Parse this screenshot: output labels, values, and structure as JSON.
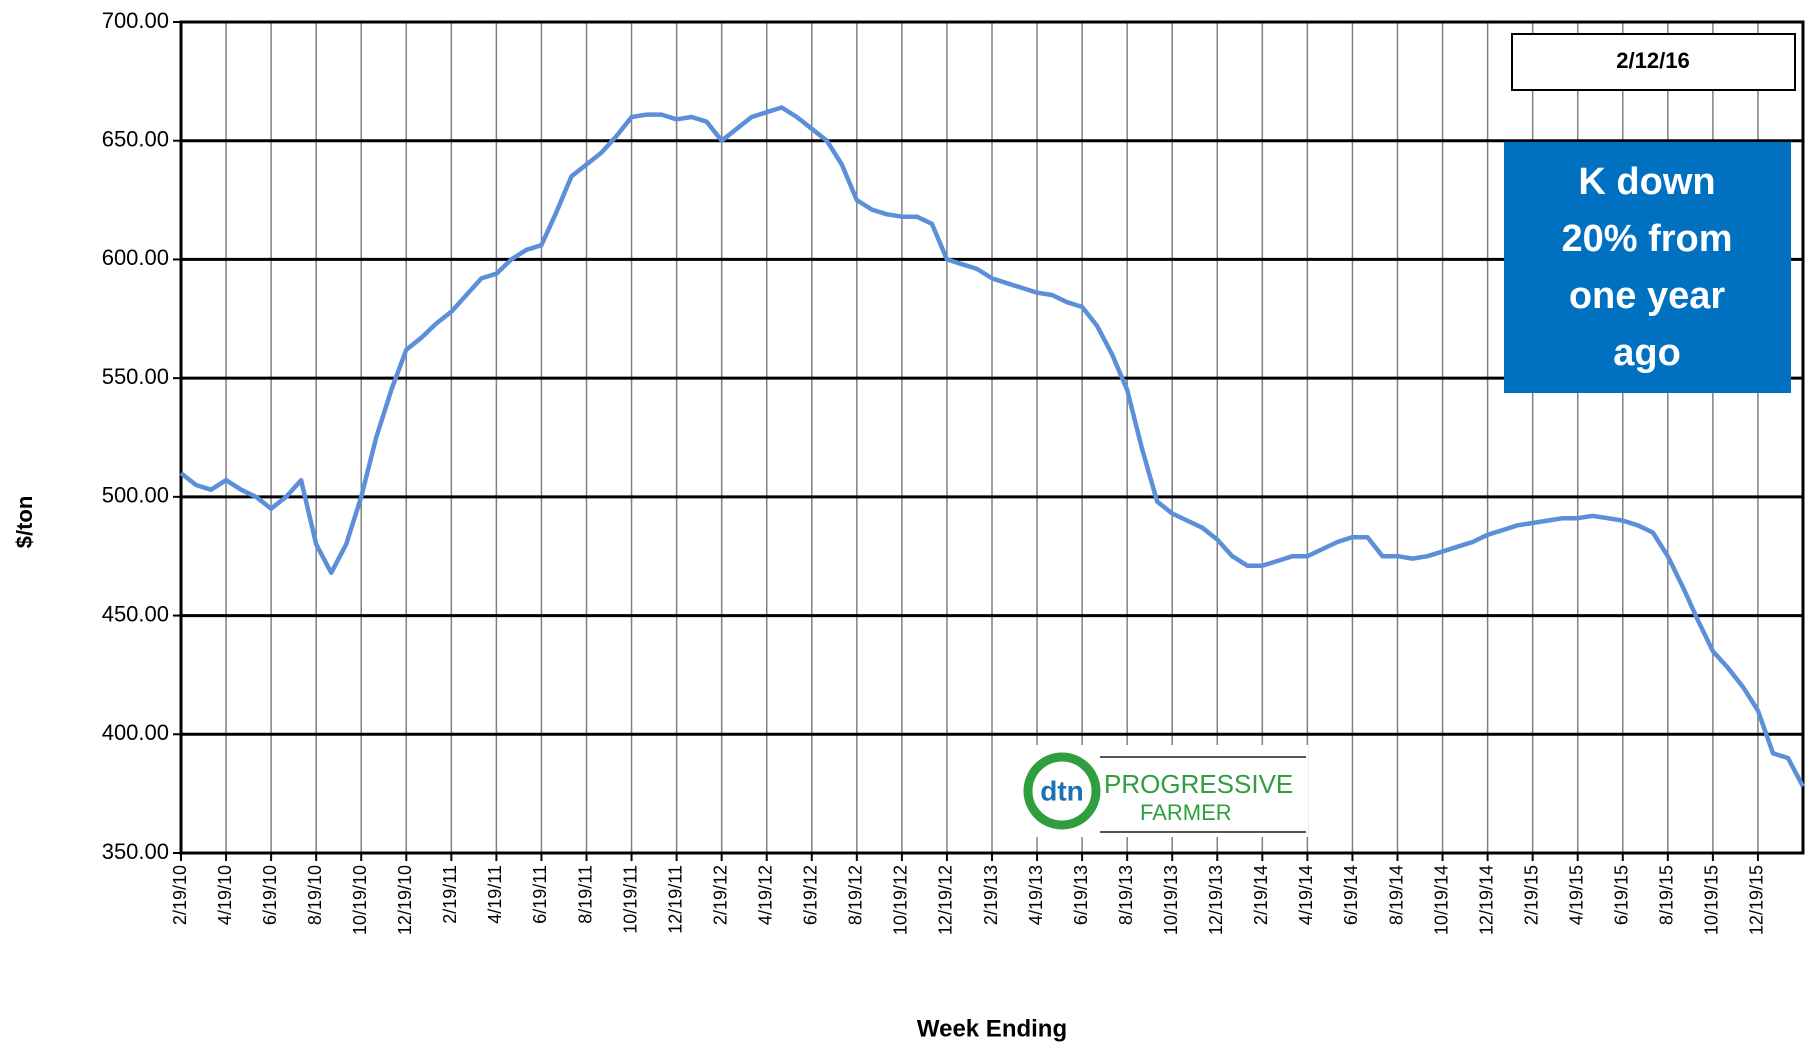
{
  "chart_data": {
    "type": "line",
    "ylabel": "$/ton",
    "xlabel": "Week Ending",
    "date_box": "2/12/16",
    "annotation": [
      "K down",
      "20% from",
      "one year",
      "ago"
    ],
    "logo": {
      "dtn": "dtn",
      "brand_top": "PROGRESSIVE",
      "brand_bottom": "FARMER"
    },
    "categories": [
      "2/19/10",
      null,
      null,
      "4/19/10",
      null,
      null,
      "6/19/10",
      null,
      null,
      "8/19/10",
      null,
      null,
      "10/19/10",
      null,
      null,
      "12/19/10",
      null,
      null,
      "2/19/11",
      null,
      null,
      "4/19/11",
      null,
      null,
      "6/19/11",
      null,
      null,
      "8/19/11",
      null,
      null,
      "10/19/11",
      null,
      null,
      "12/19/11",
      null,
      null,
      "2/19/12",
      null,
      null,
      "4/19/12",
      null,
      null,
      "6/19/12",
      null,
      null,
      "8/19/12",
      null,
      null,
      "10/19/12",
      null,
      null,
      "12/19/12",
      null,
      null,
      "2/19/13",
      null,
      null,
      "4/19/13",
      null,
      null,
      "6/19/13",
      null,
      null,
      "8/19/13",
      null,
      null,
      "10/19/13",
      null,
      null,
      "12/19/13",
      null,
      null,
      "2/19/14",
      null,
      null,
      "4/19/14",
      null,
      null,
      "6/19/14",
      null,
      null,
      "8/19/14",
      null,
      null,
      "10/19/14",
      null,
      null,
      "12/19/14",
      null,
      null,
      "2/19/15",
      null,
      null,
      "4/19/15",
      null,
      null,
      "6/19/15",
      null,
      null,
      "8/19/15",
      null,
      null,
      "10/19/15",
      null,
      null,
      "12/19/15",
      null,
      null,
      null
    ],
    "values": [
      510,
      505,
      503,
      507,
      503,
      500,
      495,
      500,
      507,
      480,
      468,
      480,
      500,
      525,
      545,
      562,
      567,
      573,
      578,
      585,
      592,
      594,
      600,
      604,
      606,
      620,
      635,
      640,
      645,
      652,
      660,
      661,
      661,
      659,
      660,
      658,
      650,
      655,
      660,
      662,
      664,
      660,
      655,
      650,
      640,
      625,
      621,
      619,
      618,
      618,
      615,
      600,
      598,
      596,
      592,
      590,
      588,
      586,
      585,
      582,
      580,
      572,
      560,
      545,
      520,
      498,
      493,
      490,
      487,
      482,
      475,
      471,
      471,
      473,
      475,
      475,
      478,
      481,
      483,
      483,
      475,
      475,
      474,
      475,
      477,
      479,
      481,
      484,
      486,
      488,
      489,
      490,
      491,
      491,
      492,
      491,
      490,
      488,
      485,
      475,
      462,
      448,
      435,
      428,
      420,
      410,
      392,
      390,
      378
    ],
    "color": "#5b8fd9",
    "ylim": [
      350,
      700
    ],
    "yticks": [
      {
        "value": 350,
        "label": "350.00"
      },
      {
        "value": 400,
        "label": "400.00"
      },
      {
        "value": 450,
        "label": "450.00"
      },
      {
        "value": 500,
        "label": "500.00"
      },
      {
        "value": 550,
        "label": "550.00"
      },
      {
        "value": 600,
        "label": "600.00"
      },
      {
        "value": 650,
        "label": "650.00"
      },
      {
        "value": 700,
        "label": "700.00"
      }
    ],
    "grid": true
  }
}
